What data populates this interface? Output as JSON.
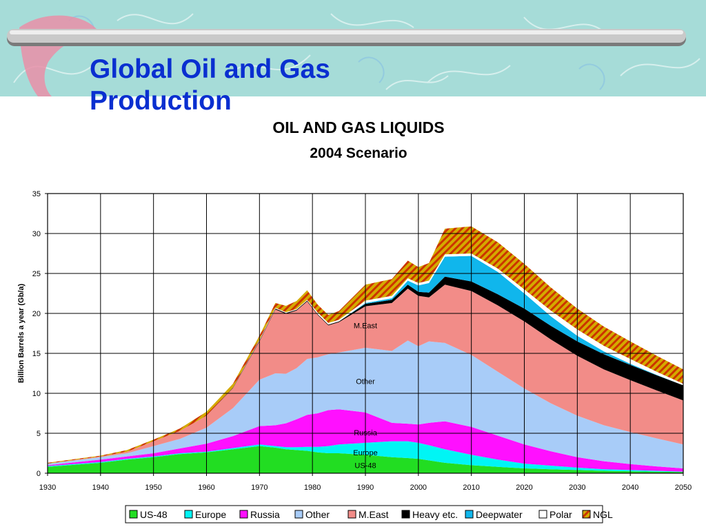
{
  "slide": {
    "title": "Global Oil and Gas Production"
  },
  "colors": {
    "banner": "#a6dcd8",
    "title": "#0a2fd0"
  },
  "chart_data": {
    "type": "area",
    "title": "OIL AND GAS LIQUIDS",
    "subtitle": "2004 Scenario",
    "xlabel": "",
    "ylabel": "Billion Barrels a year (Gb/a)",
    "xlim": [
      1930,
      2050
    ],
    "ylim": [
      0,
      35
    ],
    "stacked": true,
    "grid": true,
    "legend_position": "bottom",
    "x_ticks": [
      1930,
      1940,
      1950,
      1960,
      1970,
      1980,
      1990,
      2000,
      2010,
      2020,
      2030,
      2040,
      2050
    ],
    "y_ticks": [
      0,
      5,
      10,
      15,
      20,
      25,
      30,
      35
    ],
    "x": [
      1930,
      1940,
      1945,
      1950,
      1955,
      1960,
      1965,
      1970,
      1973,
      1975,
      1977,
      1979,
      1981,
      1983,
      1985,
      1990,
      1995,
      1998,
      2000,
      2002,
      2005,
      2010,
      2015,
      2020,
      2025,
      2030,
      2035,
      2040,
      2045,
      2050
    ],
    "series": [
      {
        "name": "US-48",
        "color": "#22dd22",
        "pattern": "solid",
        "values": [
          0.8,
          1.3,
          1.7,
          2.0,
          2.4,
          2.6,
          3.0,
          3.4,
          3.2,
          3.0,
          2.9,
          2.8,
          2.6,
          2.5,
          2.5,
          2.3,
          2.0,
          1.9,
          1.8,
          1.6,
          1.3,
          1.0,
          0.8,
          0.6,
          0.5,
          0.4,
          0.3,
          0.25,
          0.2,
          0.15
        ]
      },
      {
        "name": "Europe",
        "color": "#00f5f5",
        "pattern": "solid",
        "values": [
          0.1,
          0.1,
          0.1,
          0.1,
          0.1,
          0.1,
          0.15,
          0.2,
          0.2,
          0.25,
          0.35,
          0.5,
          0.7,
          0.9,
          1.1,
          1.5,
          2.0,
          2.1,
          2.0,
          1.9,
          1.7,
          1.3,
          0.9,
          0.6,
          0.45,
          0.3,
          0.2,
          0.15,
          0.1,
          0.05
        ]
      },
      {
        "name": "Russia",
        "color": "#ff10ff",
        "pattern": "solid",
        "values": [
          0.1,
          0.3,
          0.3,
          0.4,
          0.6,
          1.0,
          1.5,
          2.3,
          2.6,
          3.0,
          3.5,
          4.0,
          4.2,
          4.5,
          4.4,
          3.8,
          2.3,
          2.2,
          2.3,
          2.8,
          3.5,
          3.5,
          3.0,
          2.4,
          1.8,
          1.3,
          1.0,
          0.75,
          0.55,
          0.4
        ]
      },
      {
        "name": "Other",
        "color": "#a8ccf8",
        "pattern": "solid",
        "values": [
          0.2,
          0.3,
          0.4,
          0.9,
          1.2,
          2.0,
          3.5,
          5.8,
          6.5,
          6.2,
          6.4,
          7.0,
          7.0,
          7.0,
          7.1,
          8.1,
          9.0,
          10.4,
          9.8,
          10.2,
          9.8,
          9.0,
          8.0,
          7.0,
          6.0,
          5.2,
          4.5,
          4.0,
          3.5,
          3.0
        ]
      },
      {
        "name": "M.East",
        "color": "#f28c88",
        "pattern": "solid",
        "values": [
          0.0,
          0.1,
          0.2,
          0.6,
          1.0,
          1.5,
          2.5,
          4.8,
          8.0,
          7.5,
          7.2,
          7.2,
          5.3,
          3.6,
          3.8,
          5.2,
          6.0,
          6.5,
          6.3,
          5.5,
          7.3,
          8.0,
          8.3,
          8.4,
          8.0,
          7.5,
          7.0,
          6.5,
          6.0,
          5.5
        ]
      },
      {
        "name": "Heavy etc.",
        "color": "#000000",
        "pattern": "solid",
        "values": [
          0.0,
          0.0,
          0.0,
          0.0,
          0.0,
          0.0,
          0.05,
          0.1,
          0.1,
          0.1,
          0.1,
          0.1,
          0.1,
          0.1,
          0.1,
          0.3,
          0.4,
          0.5,
          0.5,
          0.6,
          1.0,
          1.2,
          1.4,
          1.6,
          1.7,
          1.8,
          1.9,
          1.9,
          1.9,
          1.9
        ]
      },
      {
        "name": "Deepwater",
        "color": "#10b6ec",
        "pattern": "solid",
        "values": [
          0.0,
          0.0,
          0.0,
          0.0,
          0.0,
          0.0,
          0.0,
          0.0,
          0.0,
          0.0,
          0.0,
          0.0,
          0.0,
          0.0,
          0.0,
          0.1,
          0.2,
          0.5,
          0.8,
          1.2,
          2.5,
          3.2,
          2.8,
          1.9,
          1.2,
          0.7,
          0.35,
          0.15,
          0.05,
          0.0
        ]
      },
      {
        "name": "Polar",
        "color": "#ffffff",
        "pattern": "solid",
        "values": [
          0.0,
          0.0,
          0.0,
          0.0,
          0.0,
          0.0,
          0.0,
          0.1,
          0.1,
          0.1,
          0.1,
          0.1,
          0.2,
          0.2,
          0.2,
          0.3,
          0.3,
          0.3,
          0.3,
          0.3,
          0.3,
          0.3,
          0.4,
          0.5,
          0.7,
          0.8,
          0.7,
          0.6,
          0.4,
          0.2
        ]
      },
      {
        "name": "NGL",
        "color": "#d4aa00",
        "pattern": "hatched",
        "values": [
          0.1,
          0.1,
          0.2,
          0.2,
          0.3,
          0.5,
          0.5,
          0.5,
          0.6,
          0.8,
          1.0,
          1.2,
          1.0,
          1.0,
          1.1,
          2.0,
          2.1,
          2.2,
          2.0,
          2.2,
          3.2,
          3.4,
          3.3,
          3.2,
          2.9,
          2.6,
          2.4,
          2.2,
          2.0,
          1.8
        ]
      }
    ],
    "area_labels": [
      {
        "text": "M.East",
        "x": 1990,
        "y": 18.5
      },
      {
        "text": "Other",
        "x": 1990,
        "y": 11.5
      },
      {
        "text": "Russia",
        "x": 1990,
        "y": 5.1
      },
      {
        "text": "Europe",
        "x": 1990,
        "y": 2.6
      },
      {
        "text": "US-48",
        "x": 1990,
        "y": 1.0
      }
    ]
  }
}
